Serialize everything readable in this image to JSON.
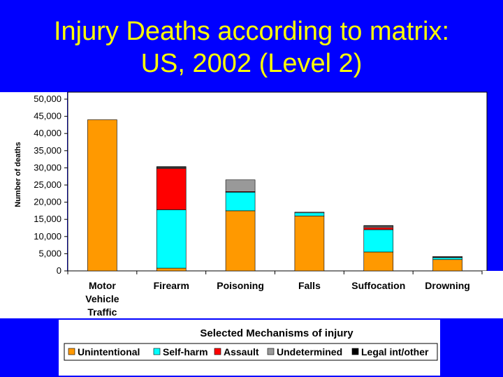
{
  "title_line1": "Injury Deaths according to matrix:",
  "title_line2": "US, 2002 (Level 2)",
  "chart_data": {
    "type": "bar",
    "stacked": true,
    "title": "Injury Deaths according to matrix: US, 2002 (Level 2)",
    "xlabel": "Selected Mechanisms of injury",
    "ylabel": "Number of deaths",
    "ylim": [
      0,
      50000
    ],
    "yticks": [
      0,
      5000,
      10000,
      15000,
      20000,
      25000,
      30000,
      35000,
      40000,
      45000,
      50000
    ],
    "ytick_labels": [
      "0",
      "5,000",
      "10,000",
      "15,000",
      "20,000",
      "25,000",
      "30,000",
      "35,000",
      "40,000",
      "45,000",
      "50,000"
    ],
    "categories": [
      [
        "Motor",
        "Vehicle",
        "Traffic"
      ],
      [
        "Firearm"
      ],
      [
        "Poisoning"
      ],
      [
        "Falls"
      ],
      [
        "Suffocation"
      ],
      [
        "Drowning"
      ]
    ],
    "series": [
      {
        "name": "Unintentional",
        "color": "#FF9900",
        "values": [
          44000,
          800,
          17500,
          16000,
          5500,
          3300
        ]
      },
      {
        "name": "Self-harm",
        "color": "#00FFFF",
        "values": [
          0,
          17000,
          5500,
          1000,
          6500,
          700
        ]
      },
      {
        "name": "Assault",
        "color": "#FF0000",
        "values": [
          0,
          12000,
          100,
          0,
          600,
          50
        ]
      },
      {
        "name": "Undetermined",
        "color": "#999999",
        "values": [
          0,
          300,
          3400,
          100,
          500,
          150
        ]
      },
      {
        "name": "Legal int/other",
        "color": "#000000",
        "values": [
          0,
          250,
          0,
          0,
          100,
          0
        ]
      }
    ],
    "grid": false,
    "legend_position": "bottom"
  }
}
